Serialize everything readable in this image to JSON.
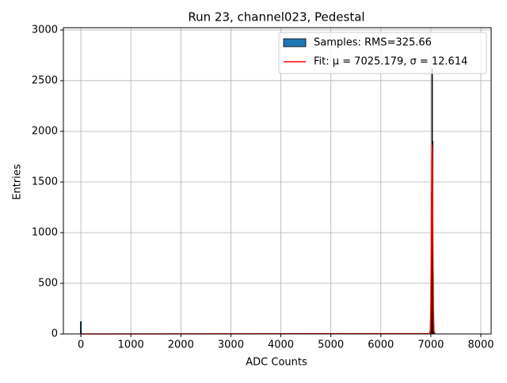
{
  "chart_data": {
    "type": "histogram",
    "title": "Run 23, channel023, Pedestal",
    "xlabel": "ADC Counts",
    "ylabel": "Entries",
    "xlim": [
      -350,
      8206
    ],
    "ylim": [
      0,
      3023
    ],
    "xticks": [
      0,
      1000,
      2000,
      3000,
      4000,
      5000,
      6000,
      7000,
      8000
    ],
    "yticks": [
      0,
      500,
      1000,
      1500,
      2000,
      2500,
      3000
    ],
    "grid": true,
    "legend": "upper right",
    "series": [
      {
        "name": "Samples: RMS=325.66",
        "type": "histogram",
        "color": "#1f77b4",
        "bins": [
          -10,
          10,
          6980,
          7000,
          7010,
          7020,
          7030,
          7040,
          7050,
          7060,
          7080
        ],
        "values": [
          120,
          0,
          5,
          400,
          1400,
          2620,
          1900,
          600,
          80,
          10
        ]
      },
      {
        "name": "Fit: μ = 7025.179, σ = 12.614",
        "type": "line",
        "color": "#ff0000",
        "x": [
          0,
          6980,
          6990,
          7000,
          7010,
          7020,
          7025,
          7030,
          7040,
          7050,
          7060,
          7070
        ],
        "values": [
          0,
          3,
          40,
          264,
          920,
          1720,
          1870,
          1740,
          940,
          270,
          42,
          3
        ]
      }
    ]
  }
}
